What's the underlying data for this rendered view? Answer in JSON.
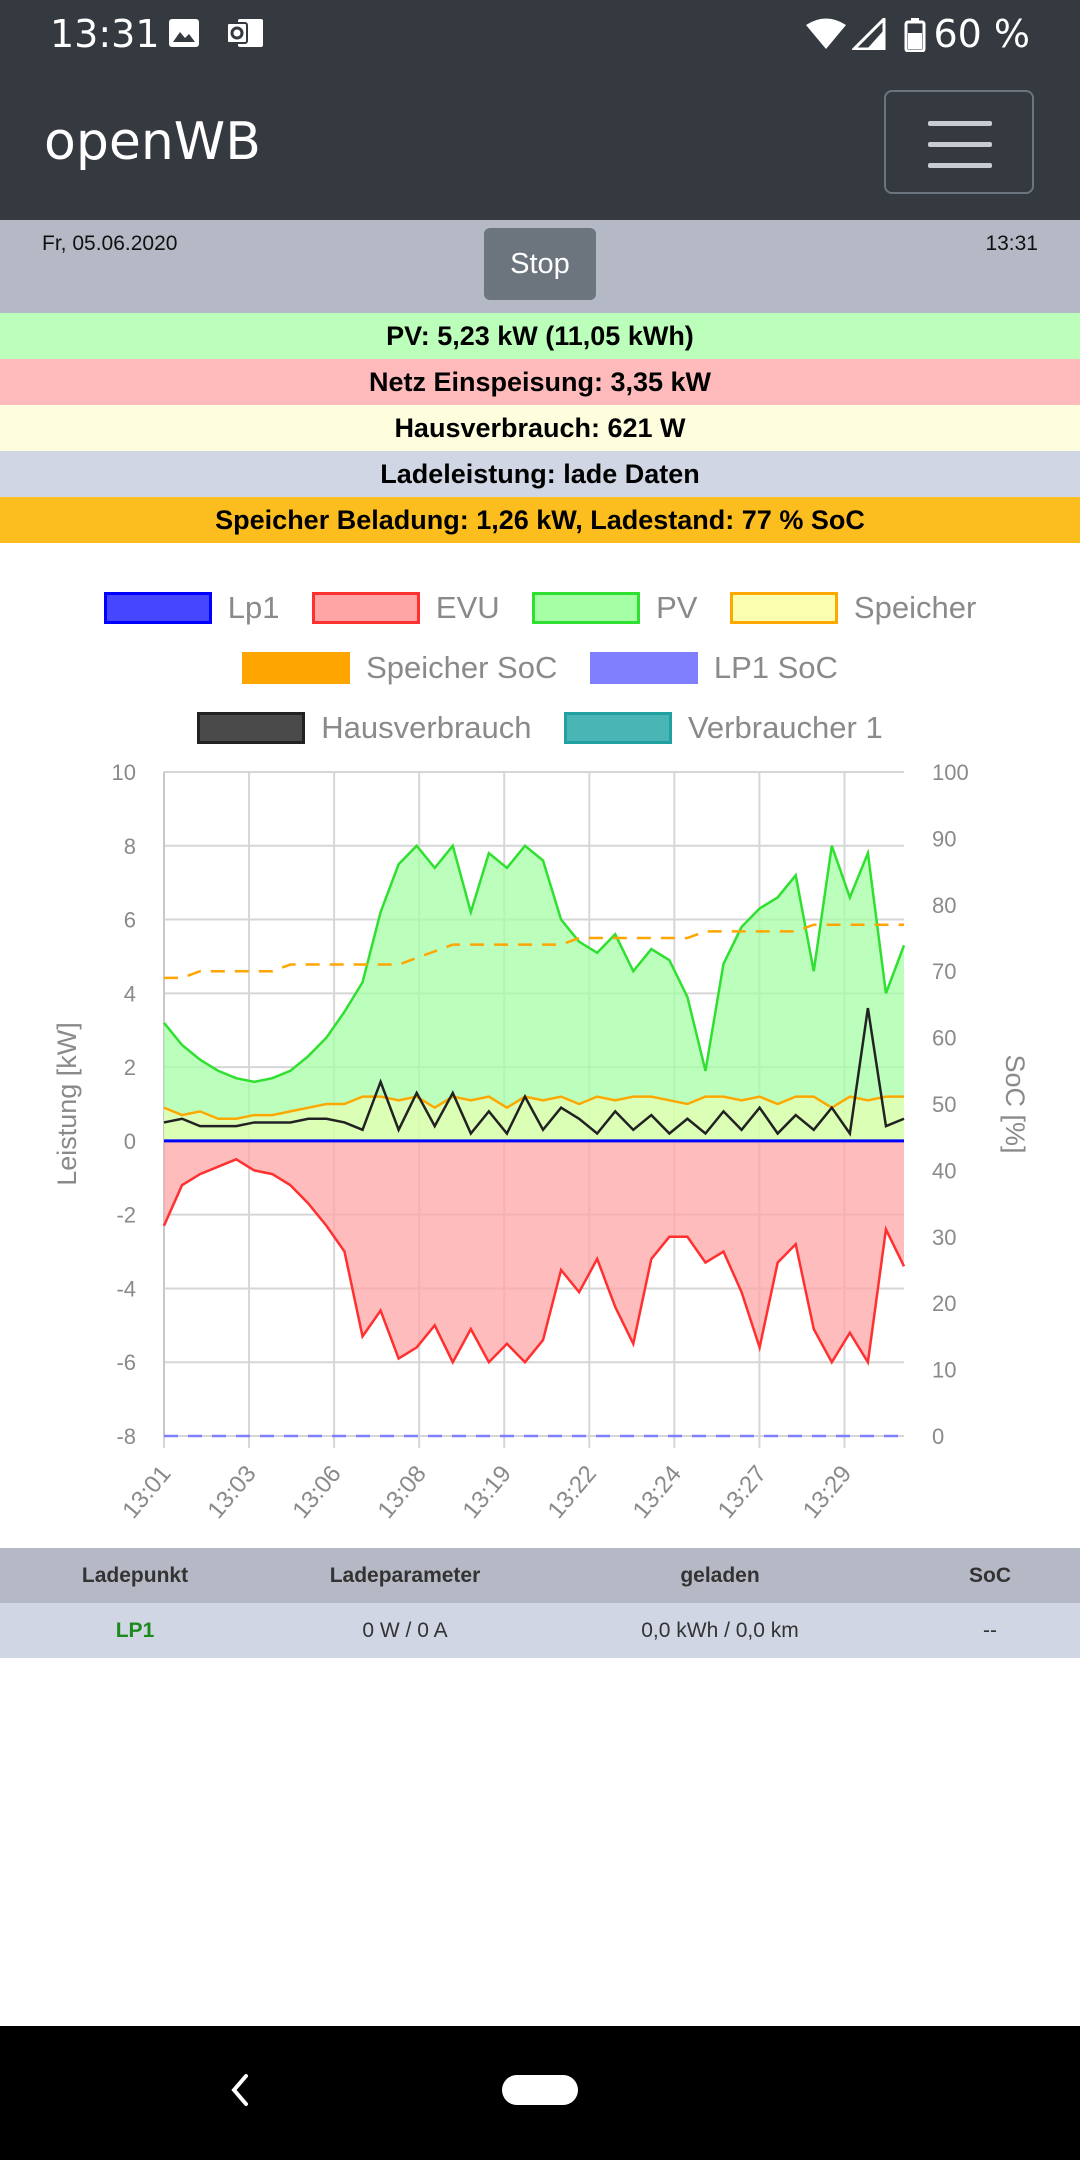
{
  "status": {
    "time": "13:31",
    "battery": "60 %"
  },
  "app": {
    "title": "openWB"
  },
  "info": {
    "date": "Fr, 05.06.2020",
    "clock": "13:31",
    "stop_label": "Stop"
  },
  "summary": {
    "pv": "PV: 5,23 kW (11,05 kWh)",
    "netz": "Netz Einspeisung: 3,35 kW",
    "haus": "Hausverbrauch: 621 W",
    "lade": "Ladeleistung: lade Daten",
    "speicher": "Speicher Beladung: 1,26 kW, Ladestand: 77 % SoC"
  },
  "colors": {
    "pv_bg": "#bbffbb",
    "netz_bg": "#ffbbbb",
    "haus_bg": "#fefedf",
    "lade_bg": "#d0d6e4",
    "speicher_bg": "#fcbe1e"
  },
  "legend": [
    {
      "label": "Lp1",
      "fill": "#4646ff",
      "stroke": "#0000ff",
      "dashed": false
    },
    {
      "label": "EVU",
      "fill": "#ffa5a5",
      "stroke": "#ff3030",
      "dashed": false
    },
    {
      "label": "PV",
      "fill": "#a5ffa5",
      "stroke": "#30e030",
      "dashed": false
    },
    {
      "label": "Speicher",
      "fill": "#fcffb0",
      "stroke": "#fca800",
      "dashed": false
    },
    {
      "label": "Speicher SoC",
      "fill": "#ffa500",
      "stroke": "#ffa500",
      "dashed": true
    },
    {
      "label": "LP1 SoC",
      "fill": "#8080ff",
      "stroke": "#8080ff",
      "dashed": true
    },
    {
      "label": "Hausverbrauch",
      "fill": "#4a4a4a",
      "stroke": "#222222",
      "dashed": false
    },
    {
      "label": "Verbraucher 1",
      "fill": "#49b5b5",
      "stroke": "#20a0a0",
      "dashed": false
    }
  ],
  "chart_data": {
    "type": "line",
    "ylabel": "Leistung [kW]",
    "y2label": "SoC [%]",
    "ylim": [
      -8,
      10
    ],
    "y2lim": [
      0,
      100
    ],
    "yticks": [
      "10",
      "8",
      "6",
      "4",
      "2",
      "0",
      "-2",
      "-4",
      "-6",
      "-8"
    ],
    "y2ticks": [
      "100",
      "90",
      "80",
      "70",
      "60",
      "50",
      "40",
      "30",
      "20",
      "10",
      "0"
    ],
    "xticks": [
      "13:01",
      "13:03",
      "13:06",
      "13:08",
      "13:19",
      "13:22",
      "13:24",
      "13:27",
      "13:29"
    ],
    "grid": true,
    "series": [
      {
        "name": "PV",
        "values": [
          3.2,
          2.6,
          2.2,
          1.9,
          1.7,
          1.6,
          1.7,
          1.9,
          2.3,
          2.8,
          3.5,
          4.3,
          6.2,
          7.5,
          8.0,
          7.4,
          8.0,
          6.2,
          7.8,
          7.4,
          8.0,
          7.6,
          6.0,
          5.4,
          5.1,
          5.6,
          4.6,
          5.2,
          4.9,
          3.9,
          1.9,
          4.8,
          5.8,
          6.3,
          6.6,
          7.2,
          4.6,
          8.0,
          6.6,
          7.8,
          4.0,
          5.3
        ]
      },
      {
        "name": "EVU",
        "values": [
          -2.3,
          -1.2,
          -0.9,
          -0.7,
          -0.5,
          -0.8,
          -0.9,
          -1.2,
          -1.7,
          -2.3,
          -3.0,
          -5.3,
          -4.6,
          -5.9,
          -5.6,
          -5.0,
          -6.0,
          -5.1,
          -6.0,
          -5.5,
          -6.0,
          -5.4,
          -3.5,
          -4.1,
          -3.2,
          -4.5,
          -5.5,
          -3.2,
          -2.6,
          -2.6,
          -3.3,
          -3.0,
          -4.1,
          -5.6,
          -3.3,
          -2.8,
          -5.1,
          -6.0,
          -5.2,
          -6.0,
          -2.4,
          -3.4
        ]
      },
      {
        "name": "Speicher",
        "values": [
          0.9,
          0.7,
          0.8,
          0.6,
          0.6,
          0.7,
          0.7,
          0.8,
          0.9,
          1.0,
          1.0,
          1.2,
          1.2,
          1.1,
          1.2,
          0.9,
          1.2,
          1.1,
          1.2,
          0.9,
          1.2,
          1.1,
          1.2,
          1.0,
          1.2,
          1.1,
          1.2,
          1.2,
          1.1,
          1.0,
          1.2,
          1.2,
          1.1,
          1.2,
          1.0,
          1.2,
          1.2,
          0.9,
          1.2,
          1.1,
          1.2,
          1.2
        ]
      },
      {
        "name": "Hausverbrauch",
        "values": [
          0.5,
          0.6,
          0.4,
          0.4,
          0.4,
          0.5,
          0.5,
          0.5,
          0.6,
          0.6,
          0.5,
          0.3,
          1.6,
          0.3,
          1.3,
          0.4,
          1.3,
          0.2,
          0.8,
          0.2,
          1.2,
          0.3,
          0.9,
          0.6,
          0.2,
          0.8,
          0.3,
          0.7,
          0.2,
          0.6,
          0.2,
          0.8,
          0.3,
          0.9,
          0.2,
          0.7,
          0.3,
          0.9,
          0.2,
          3.6,
          0.4,
          0.6
        ]
      },
      {
        "name": "Lp1",
        "values": [
          0,
          0,
          0,
          0,
          0,
          0,
          0,
          0,
          0,
          0,
          0,
          0,
          0,
          0,
          0,
          0,
          0,
          0,
          0,
          0,
          0,
          0,
          0,
          0,
          0,
          0,
          0,
          0,
          0,
          0,
          0,
          0,
          0,
          0,
          0,
          0,
          0,
          0,
          0,
          0,
          0,
          0
        ]
      },
      {
        "name": "Speicher SoC",
        "axis": "right",
        "values": [
          69,
          69,
          70,
          70,
          70,
          70,
          70,
          71,
          71,
          71,
          71,
          71,
          71,
          71,
          72,
          73,
          74,
          74,
          74,
          74,
          74,
          74,
          74,
          75,
          75,
          75,
          75,
          75,
          75,
          75,
          76,
          76,
          76,
          76,
          76,
          76,
          77,
          77,
          77,
          77,
          77,
          77
        ]
      },
      {
        "name": "LP1 SoC",
        "axis": "right",
        "values": [
          0,
          0,
          0,
          0,
          0,
          0,
          0,
          0,
          0,
          0,
          0,
          0,
          0,
          0,
          0,
          0,
          0,
          0,
          0,
          0,
          0,
          0,
          0,
          0,
          0,
          0,
          0,
          0,
          0,
          0,
          0,
          0,
          0,
          0,
          0,
          0,
          0,
          0,
          0,
          0,
          0,
          0
        ]
      }
    ]
  },
  "table": {
    "headers": [
      "Ladepunkt",
      "Ladeparameter",
      "geladen",
      "SoC"
    ],
    "row": [
      "LP1",
      "0 W / 0 A",
      "0,0 kWh / 0,0 km",
      "--"
    ]
  }
}
